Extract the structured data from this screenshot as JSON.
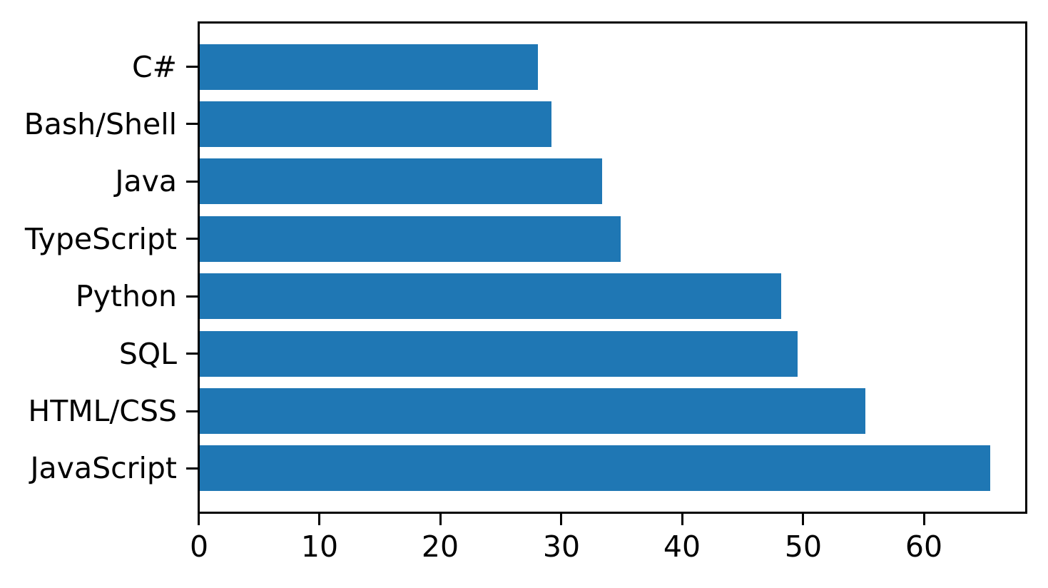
{
  "chart_data": {
    "type": "bar",
    "orientation": "horizontal",
    "title": "",
    "xlabel": "",
    "ylabel": "",
    "grid": false,
    "legend": false,
    "bar_color": "#1f77b4",
    "axis_color": "#000000",
    "background_color": "#ffffff",
    "xlim": [
      0,
      68.63
    ],
    "x_ticks": [
      0,
      10,
      20,
      30,
      40,
      50,
      60
    ],
    "rows_top_to_bottom": [
      {
        "label": "C#",
        "value": 27.98
      },
      {
        "label": "Bash/Shell",
        "value": 29.07
      },
      {
        "label": "Java",
        "value": 33.27
      },
      {
        "label": "TypeScript",
        "value": 34.83
      },
      {
        "label": "Python",
        "value": 48.07
      },
      {
        "label": "SQL",
        "value": 49.43
      },
      {
        "label": "HTML/CSS",
        "value": 55.08
      },
      {
        "label": "JavaScript",
        "value": 65.36
      }
    ]
  }
}
